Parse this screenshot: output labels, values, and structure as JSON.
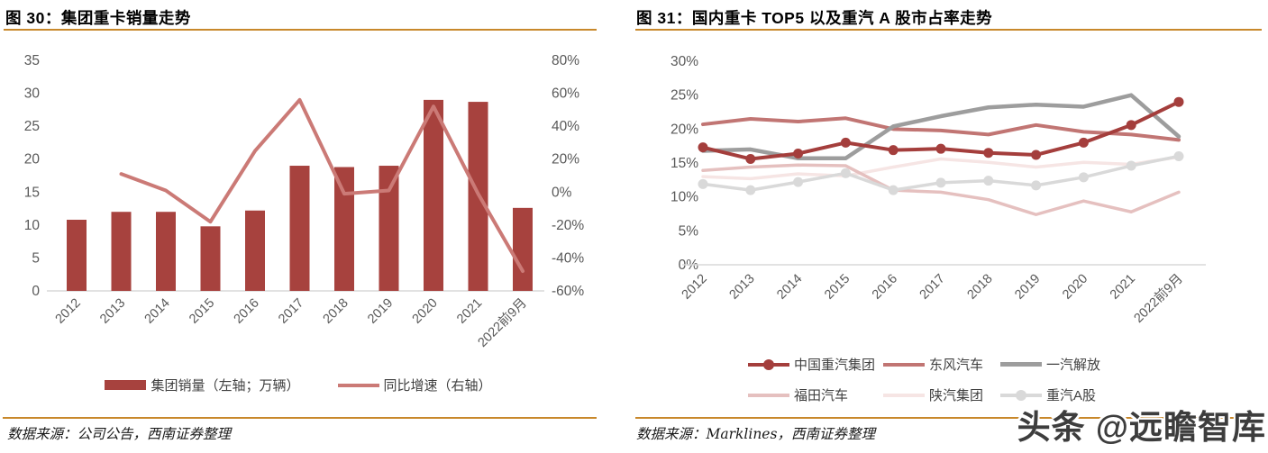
{
  "watermark": "头条 @远瞻智库",
  "figures": [
    {
      "title": "图 30：集团重卡销量走势",
      "source": "数据来源：公司公告，西南证券整理"
    },
    {
      "title": "图 31：国内重卡 TOP5 以及重汽 A 股市占率走势",
      "source": "数据来源：Marklines，西南证券整理"
    }
  ],
  "chart_data": [
    {
      "type": "bar+line combo",
      "categories": [
        "2012",
        "2013",
        "2014",
        "2015",
        "2016",
        "2017",
        "2018",
        "2019",
        "2020",
        "2021",
        "2022前9月"
      ],
      "series": [
        {
          "name": "集团销量（左轴；万辆）",
          "type": "bar",
          "axis": "left",
          "color": "#A7423E",
          "values": [
            10.8,
            12.0,
            12.0,
            9.8,
            12.2,
            19.0,
            18.8,
            19.0,
            29.0,
            28.7,
            12.6
          ]
        },
        {
          "name": "同比增速（右轴）",
          "type": "line",
          "axis": "right",
          "color": "#CB7A76",
          "width": 4,
          "values": [
            null,
            11,
            1,
            -18,
            25,
            56,
            -1,
            1,
            52,
            -1,
            -48
          ]
        }
      ],
      "left_axis": {
        "min": 0,
        "max": 35,
        "tick_values": [
          35,
          30,
          25,
          20,
          15,
          10,
          5,
          0
        ],
        "tick_labels": [
          "35",
          "30",
          "25",
          "20",
          "15",
          "10",
          "5",
          "0"
        ]
      },
      "right_axis": {
        "min": -60,
        "max": 80,
        "tick_values": [
          80,
          60,
          40,
          20,
          0,
          -20,
          -40,
          -60
        ],
        "tick_labels": [
          "80%",
          "60%",
          "40%",
          "20%",
          "0%",
          "-20%",
          "-40%",
          "-60%"
        ]
      },
      "grid": "off",
      "legend_position": "bottom"
    },
    {
      "type": "line",
      "categories": [
        "2012",
        "2013",
        "2014",
        "2015",
        "2016",
        "2017",
        "2018",
        "2019",
        "2020",
        "2021",
        "2022前9月"
      ],
      "series": [
        {
          "name": "中国重汽集团",
          "color": "#A43E3C",
          "width": 4,
          "marker": true,
          "values": [
            17.3,
            15.6,
            16.4,
            18.0,
            16.9,
            17.1,
            16.5,
            16.2,
            18.0,
            20.6,
            24.0
          ]
        },
        {
          "name": "东风汽车",
          "color": "#C17573",
          "width": 4,
          "marker": false,
          "values": [
            20.7,
            21.5,
            21.1,
            21.6,
            20.0,
            19.8,
            19.2,
            20.6,
            19.6,
            19.2,
            18.4
          ]
        },
        {
          "name": "一汽解放",
          "color": "#9D9D9D",
          "width": 4.5,
          "marker": false,
          "values": [
            16.8,
            17.0,
            15.7,
            15.7,
            20.4,
            21.9,
            23.2,
            23.6,
            23.3,
            25.0,
            18.9
          ]
        },
        {
          "name": "福田汽车",
          "color": "#E5C0BF",
          "width": 3.5,
          "marker": false,
          "values": [
            13.9,
            14.4,
            14.7,
            14.6,
            11.0,
            10.7,
            9.6,
            7.4,
            9.4,
            7.8,
            10.7
          ]
        },
        {
          "name": "陕汽集团",
          "color": "#F6E5E4",
          "width": 3.5,
          "marker": false,
          "values": [
            13.0,
            12.7,
            13.4,
            13.1,
            14.4,
            15.6,
            15.1,
            14.4,
            15.1,
            14.8,
            15.9
          ]
        },
        {
          "name": "重汽A股",
          "color": "#D9D9D9",
          "width": 3.5,
          "marker": true,
          "values": [
            11.9,
            11.0,
            12.2,
            13.5,
            11.0,
            12.1,
            12.4,
            11.7,
            12.9,
            14.6,
            16.0
          ]
        }
      ],
      "y_axis": {
        "min": 0,
        "max": 30,
        "tick_values": [
          30,
          25,
          20,
          15,
          10,
          5,
          0
        ],
        "tick_labels": [
          "30%",
          "25%",
          "20%",
          "15%",
          "10%",
          "5%",
          "0%"
        ]
      },
      "grid": "off",
      "legend_position": "bottom"
    }
  ],
  "colors": {
    "title_rule": "#C8882B",
    "axis_text": "#595959",
    "baseline": "#D9D9D9",
    "watermark_text": "#3D3D3D"
  }
}
